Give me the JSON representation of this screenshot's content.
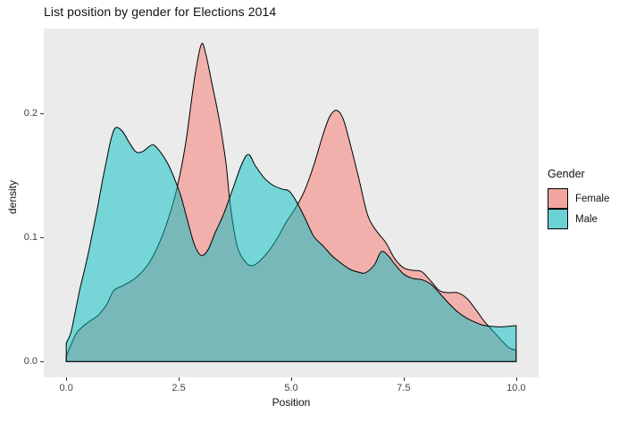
{
  "title": "List position by gender for Elections 2014",
  "axes": {
    "x_label": "Position",
    "y_label": "density",
    "x_tick_labels": [
      "0.0",
      "2.5",
      "5.0",
      "7.5",
      "10.0"
    ],
    "y_tick_labels": [
      "0.0",
      "0.1",
      "0.2"
    ]
  },
  "legend": {
    "title": "Gender",
    "items": [
      {
        "label": "Female",
        "swatch_color": "#F2A5A0"
      },
      {
        "label": "Male",
        "swatch_color": "#6BD1D5"
      }
    ]
  },
  "colors": {
    "panel_background": "#EBEBEB",
    "female_fill": "#F8766D",
    "male_fill": "#00BFC4",
    "outline": "#000000",
    "fill_alpha": 0.5
  },
  "chart_data": {
    "type": "area",
    "subtype": "overlapping-density",
    "title": "List position by gender for Elections 2014",
    "xlabel": "Position",
    "ylabel": "density",
    "xlim": [
      0,
      10
    ],
    "ylim": [
      0,
      0.2556
    ],
    "x_tick_values": [
      0,
      2.5,
      5,
      7.5,
      10
    ],
    "y_tick_values": [
      0,
      0.1,
      0.2
    ],
    "grid": false,
    "legend_position": "right",
    "series": [
      {
        "name": "Female",
        "color": "#F8766D",
        "x": [
          0,
          0.1,
          0.25,
          0.5,
          0.7,
          0.9,
          1.05,
          1.25,
          1.45,
          1.65,
          1.85,
          2.05,
          2.25,
          2.45,
          2.65,
          2.85,
          3.0,
          3.1,
          3.25,
          3.4,
          3.55,
          3.65,
          3.8,
          4.0,
          4.15,
          4.3,
          4.5,
          4.7,
          4.9,
          5.1,
          5.3,
          5.5,
          5.7,
          5.85,
          6.0,
          6.15,
          6.3,
          6.5,
          6.7,
          6.9,
          7.1,
          7.3,
          7.5,
          7.7,
          7.9,
          8.1,
          8.3,
          8.5,
          8.7,
          8.9,
          9.1,
          9.3,
          9.5,
          9.7,
          9.85,
          10
        ],
        "y": [
          0.004,
          0.013,
          0.024,
          0.032,
          0.037,
          0.046,
          0.057,
          0.061,
          0.065,
          0.071,
          0.08,
          0.094,
          0.113,
          0.138,
          0.175,
          0.228,
          0.2555,
          0.248,
          0.222,
          0.195,
          0.16,
          0.125,
          0.093,
          0.0795,
          0.0775,
          0.081,
          0.089,
          0.1,
          0.113,
          0.124,
          0.138,
          0.158,
          0.182,
          0.197,
          0.2025,
          0.196,
          0.177,
          0.148,
          0.118,
          0.105,
          0.096,
          0.083,
          0.0755,
          0.0735,
          0.0725,
          0.065,
          0.057,
          0.0555,
          0.0555,
          0.051,
          0.042,
          0.032,
          0.024,
          0.016,
          0.011,
          0.009
        ]
      },
      {
        "name": "Male",
        "color": "#00BFC4",
        "x": [
          0,
          0.1,
          0.2,
          0.3,
          0.4,
          0.5,
          0.6,
          0.7,
          0.8,
          0.9,
          1.0,
          1.1,
          1.25,
          1.4,
          1.55,
          1.7,
          1.85,
          1.95,
          2.1,
          2.25,
          2.4,
          2.55,
          2.7,
          2.85,
          3.0,
          3.15,
          3.3,
          3.5,
          3.7,
          3.9,
          4.05,
          4.2,
          4.4,
          4.6,
          4.8,
          4.95,
          5.1,
          5.3,
          5.5,
          5.7,
          5.9,
          6.1,
          6.3,
          6.5,
          6.65,
          6.85,
          7.0,
          7.15,
          7.3,
          7.5,
          7.7,
          7.9,
          8.1,
          8.3,
          8.5,
          8.7,
          8.9,
          9.1,
          9.3,
          9.5,
          9.7,
          9.85,
          10
        ],
        "y": [
          0.015,
          0.023,
          0.04,
          0.058,
          0.073,
          0.089,
          0.107,
          0.125,
          0.145,
          0.163,
          0.18,
          0.1885,
          0.1855,
          0.1765,
          0.169,
          0.1693,
          0.1735,
          0.1745,
          0.1685,
          0.16,
          0.148,
          0.133,
          0.113,
          0.094,
          0.0855,
          0.09,
          0.103,
          0.119,
          0.139,
          0.159,
          0.167,
          0.158,
          0.148,
          0.142,
          0.139,
          0.1375,
          0.13,
          0.116,
          0.101,
          0.0935,
          0.0855,
          0.0795,
          0.0745,
          0.072,
          0.0715,
          0.078,
          0.0885,
          0.0855,
          0.0785,
          0.0705,
          0.067,
          0.066,
          0.0625,
          0.055,
          0.047,
          0.04,
          0.035,
          0.0315,
          0.029,
          0.0282,
          0.028,
          0.0285,
          0.029
        ]
      }
    ]
  }
}
